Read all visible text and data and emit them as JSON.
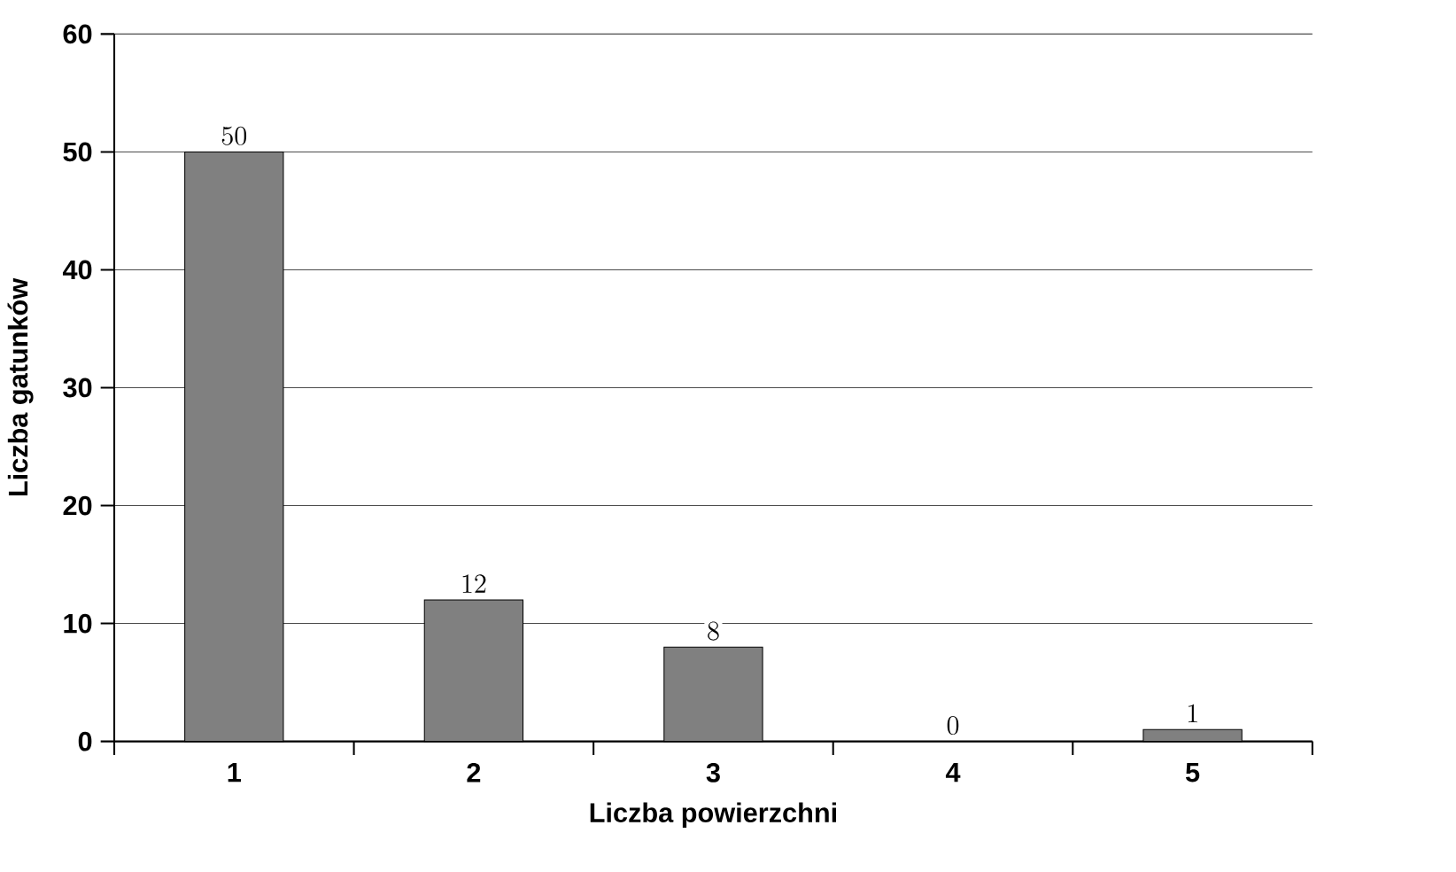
{
  "chart_data": {
    "type": "bar",
    "xlabel": "Liczba powierzchni",
    "ylabel": "Liczba gatunków",
    "categories": [
      "1",
      "2",
      "3",
      "4",
      "5"
    ],
    "values": [
      50,
      12,
      8,
      0,
      1
    ],
    "color": "#808080",
    "ylim": [
      0,
      60
    ],
    "yticks": [
      0,
      10,
      20,
      30,
      40,
      50,
      60
    ],
    "grid": "y",
    "data_labels": true
  }
}
